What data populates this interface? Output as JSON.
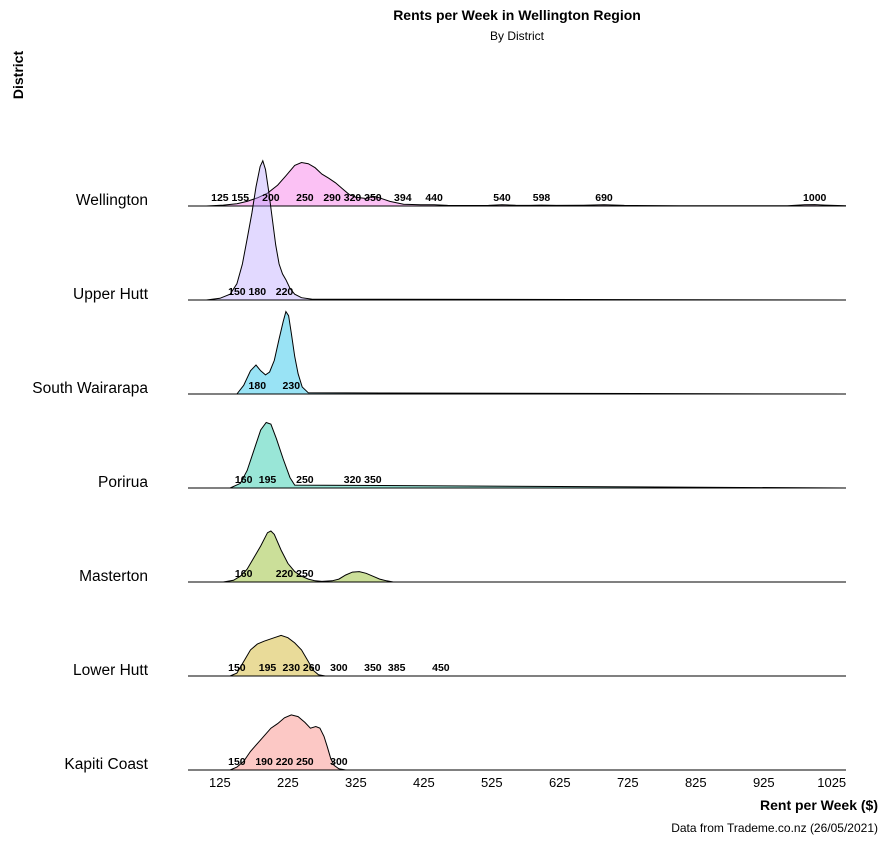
{
  "chart_data": {
    "type": "area",
    "title": "Rents per Week in Wellington Region",
    "subtitle": "By District",
    "xlabel": "Rent per Week ($)",
    "ylabel": "District",
    "caption": "Data from Trademe.co.nz (26/05/2021)",
    "xlim": [
      78,
      1046
    ],
    "x_ticks": [
      125,
      225,
      325,
      425,
      525,
      625,
      725,
      825,
      925,
      1025
    ],
    "grid": false,
    "legend": "none",
    "series": [
      {
        "name": "Wellington",
        "color": "#F564E3",
        "density": [
          [
            105,
            0
          ],
          [
            130,
            0.015
          ],
          [
            150,
            0.04
          ],
          [
            165,
            0.08
          ],
          [
            180,
            0.14
          ],
          [
            195,
            0.22
          ],
          [
            210,
            0.36
          ],
          [
            222,
            0.52
          ],
          [
            235,
            0.7
          ],
          [
            245,
            0.75
          ],
          [
            255,
            0.73
          ],
          [
            265,
            0.66
          ],
          [
            275,
            0.55
          ],
          [
            285,
            0.48
          ],
          [
            295,
            0.4
          ],
          [
            305,
            0.3
          ],
          [
            315,
            0.2
          ],
          [
            325,
            0.15
          ],
          [
            340,
            0.13
          ],
          [
            350,
            0.17
          ],
          [
            360,
            0.14
          ],
          [
            375,
            0.08
          ],
          [
            395,
            0.03
          ],
          [
            420,
            0.02
          ],
          [
            440,
            0.022
          ],
          [
            460,
            0.01
          ],
          [
            490,
            0.008
          ],
          [
            520,
            0.01
          ],
          [
            540,
            0.02
          ],
          [
            560,
            0.012
          ],
          [
            580,
            0.01
          ],
          [
            598,
            0.015
          ],
          [
            620,
            0.01
          ],
          [
            660,
            0.012
          ],
          [
            690,
            0.02
          ],
          [
            720,
            0.01
          ],
          [
            800,
            0.005
          ],
          [
            960,
            0.006
          ],
          [
            985,
            0.02
          ],
          [
            1000,
            0.025
          ],
          [
            1015,
            0.015
          ],
          [
            1046,
            0.005
          ]
        ],
        "peak_labels": [
          125,
          155,
          200,
          250,
          290,
          320,
          350,
          394,
          440,
          540,
          598,
          690,
          1000
        ]
      },
      {
        "name": "Upper Hutt",
        "color": "#B79FFF",
        "density": [
          [
            105,
            0
          ],
          [
            125,
            0.03
          ],
          [
            140,
            0.1
          ],
          [
            150,
            0.28
          ],
          [
            158,
            0.62
          ],
          [
            165,
            1.05
          ],
          [
            172,
            1.5
          ],
          [
            178,
            1.95
          ],
          [
            184,
            2.3
          ],
          [
            188,
            2.4
          ],
          [
            192,
            2.25
          ],
          [
            197,
            1.85
          ],
          [
            202,
            1.4
          ],
          [
            207,
            0.95
          ],
          [
            212,
            0.62
          ],
          [
            217,
            0.45
          ],
          [
            222,
            0.35
          ],
          [
            228,
            0.2
          ],
          [
            235,
            0.1
          ],
          [
            245,
            0.04
          ],
          [
            260,
            0.015
          ],
          [
            1046,
            0
          ]
        ],
        "peak_labels": [
          150,
          180,
          220
        ]
      },
      {
        "name": "South Wairarapa",
        "color": "#00B8E7",
        "density": [
          [
            150,
            0
          ],
          [
            160,
            0.15
          ],
          [
            170,
            0.4
          ],
          [
            178,
            0.5
          ],
          [
            185,
            0.4
          ],
          [
            192,
            0.33
          ],
          [
            198,
            0.38
          ],
          [
            205,
            0.58
          ],
          [
            212,
            0.95
          ],
          [
            218,
            1.25
          ],
          [
            222,
            1.42
          ],
          [
            226,
            1.35
          ],
          [
            230,
            1.05
          ],
          [
            235,
            0.65
          ],
          [
            240,
            0.35
          ],
          [
            246,
            0.12
          ],
          [
            255,
            0.02
          ],
          [
            1046,
            0
          ]
        ],
        "peak_labels": [
          180,
          230
        ]
      },
      {
        "name": "Porirua",
        "color": "#00C19A",
        "density": [
          [
            140,
            0
          ],
          [
            155,
            0.08
          ],
          [
            165,
            0.3
          ],
          [
            175,
            0.65
          ],
          [
            185,
            1.0
          ],
          [
            193,
            1.13
          ],
          [
            200,
            1.1
          ],
          [
            208,
            0.85
          ],
          [
            218,
            0.5
          ],
          [
            228,
            0.18
          ],
          [
            235,
            0.05
          ],
          [
            1046,
            0
          ]
        ],
        "peak_labels": [
          160,
          195,
          250,
          320,
          350
        ]
      },
      {
        "name": "Masterton",
        "color": "#7CAE00",
        "density": [
          [
            130,
            0
          ],
          [
            145,
            0.03
          ],
          [
            155,
            0.1
          ],
          [
            165,
            0.22
          ],
          [
            175,
            0.42
          ],
          [
            185,
            0.62
          ],
          [
            195,
            0.85
          ],
          [
            200,
            0.88
          ],
          [
            205,
            0.82
          ],
          [
            215,
            0.55
          ],
          [
            225,
            0.32
          ],
          [
            235,
            0.18
          ],
          [
            245,
            0.1
          ],
          [
            255,
            0.05
          ],
          [
            265,
            0.02
          ],
          [
            275,
            0.01
          ],
          [
            290,
            0.02
          ],
          [
            300,
            0.05
          ],
          [
            310,
            0.12
          ],
          [
            320,
            0.17
          ],
          [
            330,
            0.18
          ],
          [
            340,
            0.15
          ],
          [
            350,
            0.1
          ],
          [
            360,
            0.05
          ],
          [
            370,
            0.02
          ],
          [
            380,
            0
          ],
          [
            1046,
            0
          ]
        ],
        "peak_labels": [
          160,
          220,
          250
        ]
      },
      {
        "name": "Lower Hutt",
        "color": "#C7A500",
        "density": [
          [
            140,
            0
          ],
          [
            150,
            0.05
          ],
          [
            160,
            0.25
          ],
          [
            170,
            0.45
          ],
          [
            180,
            0.55
          ],
          [
            190,
            0.6
          ],
          [
            205,
            0.66
          ],
          [
            215,
            0.7
          ],
          [
            225,
            0.66
          ],
          [
            235,
            0.57
          ],
          [
            245,
            0.45
          ],
          [
            255,
            0.25
          ],
          [
            262,
            0.1
          ],
          [
            270,
            0.02
          ],
          [
            280,
            0
          ],
          [
            1046,
            0
          ]
        ],
        "peak_labels": [
          150,
          195,
          230,
          260,
          300,
          350,
          385,
          450
        ]
      },
      {
        "name": "Kapiti Coast",
        "color": "#F8766D",
        "density": [
          [
            140,
            0
          ],
          [
            150,
            0.05
          ],
          [
            160,
            0.15
          ],
          [
            170,
            0.32
          ],
          [
            185,
            0.52
          ],
          [
            200,
            0.72
          ],
          [
            210,
            0.8
          ],
          [
            220,
            0.9
          ],
          [
            230,
            0.95
          ],
          [
            240,
            0.92
          ],
          [
            250,
            0.82
          ],
          [
            258,
            0.72
          ],
          [
            266,
            0.75
          ],
          [
            272,
            0.72
          ],
          [
            278,
            0.58
          ],
          [
            283,
            0.4
          ],
          [
            288,
            0.2
          ],
          [
            293,
            0.08
          ],
          [
            300,
            0.02
          ],
          [
            310,
            0
          ],
          [
            1046,
            0
          ]
        ],
        "peak_labels": [
          150,
          190,
          220,
          250,
          300
        ]
      }
    ]
  }
}
